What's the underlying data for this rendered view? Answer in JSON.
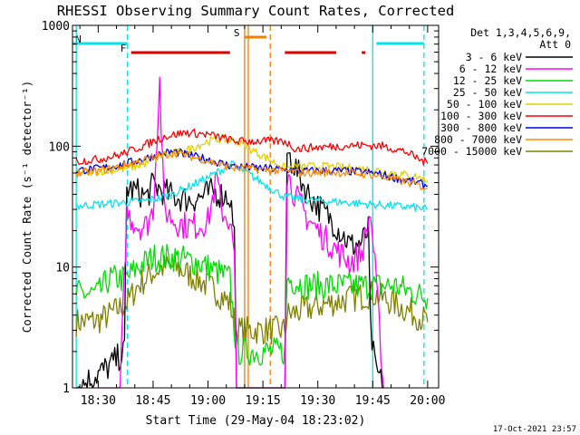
{
  "chart_data": {
    "type": "line",
    "title": "RHESSI Observing Summary Count Rates, Corrected",
    "xlabel": "Start Time (29-May-04 18:23:02)",
    "ylabel": "Corrected Count Rate (s⁻¹ detector⁻¹)",
    "yscale": "log",
    "ylim": [
      1,
      1000
    ],
    "xlim_minutes": [
      18.383,
      20.05
    ],
    "x_ticks": [
      "18:30",
      "18:45",
      "19:00",
      "19:15",
      "19:30",
      "19:45",
      "20:00"
    ],
    "y_ticks": [
      "1",
      "10",
      "100",
      "1000"
    ],
    "footer": "17-Oct-2021 23:57",
    "legend": {
      "title_lines": [
        "Det 1,3,4,5,6,9,",
        "Att 0"
      ],
      "placement": "right"
    },
    "flags": [
      {
        "label": "N",
        "color": "#00e5ee",
        "bar_ranges": [
          [
            "18:23",
            "18:38"
          ],
          [
            "19:46",
            "19:59"
          ]
        ]
      },
      {
        "label": "F",
        "color": "#e00000",
        "bar_ranges": [
          [
            "18:39",
            "19:06"
          ],
          [
            "19:21",
            "19:35"
          ],
          [
            "19:42",
            "19:43"
          ]
        ]
      },
      {
        "label": "S",
        "color": "#f08000",
        "bar_ranges": [
          [
            "19:10",
            "19:16"
          ]
        ]
      }
    ],
    "vertical_lines": [
      {
        "time": "18:24",
        "color": "#00e5ee",
        "style": "solid"
      },
      {
        "time": "18:38",
        "color": "#00e5ee",
        "style": "dashed"
      },
      {
        "time": "19:10",
        "color": "#f08000",
        "style": "solid"
      },
      {
        "time": "19:11",
        "color": "#f08000",
        "style": "solid"
      },
      {
        "time": "19:17",
        "color": "#f08000",
        "style": "dashed"
      },
      {
        "time": "19:45",
        "color": "#00e5ee",
        "style": "solid"
      },
      {
        "time": "19:59",
        "color": "#00e5ee",
        "style": "dashed"
      }
    ],
    "series": [
      {
        "name": "3 - 6 keV",
        "color": "#000000",
        "points": [
          [
            18.4,
            1
          ],
          [
            18.55,
            1.5
          ],
          [
            18.62,
            2
          ],
          [
            18.63,
            45
          ],
          [
            18.68,
            42
          ],
          [
            18.72,
            38
          ],
          [
            18.75,
            48
          ],
          [
            18.8,
            42
          ],
          [
            18.85,
            38
          ],
          [
            18.92,
            36
          ],
          [
            18.97,
            38
          ],
          [
            19.02,
            42
          ],
          [
            19.06,
            40
          ],
          [
            19.1,
            38
          ],
          [
            19.12,
            20
          ],
          [
            19.13,
            1
          ],
          [
            19.35,
            1
          ],
          [
            19.36,
            90
          ],
          [
            19.4,
            65
          ],
          [
            19.45,
            42
          ],
          [
            19.5,
            32
          ],
          [
            19.55,
            26
          ],
          [
            19.6,
            20
          ],
          [
            19.65,
            15
          ],
          [
            19.7,
            16
          ],
          [
            19.73,
            20
          ],
          [
            19.74,
            3
          ],
          [
            19.76,
            1.5
          ],
          [
            19.8,
            1
          ]
        ]
      },
      {
        "name": "6 - 12 keV",
        "color": "#ff00ff",
        "points": [
          [
            18.5,
            1
          ],
          [
            18.6,
            1
          ],
          [
            18.63,
            28
          ],
          [
            18.68,
            22
          ],
          [
            18.72,
            22
          ],
          [
            18.75,
            30
          ],
          [
            18.78,
            340
          ],
          [
            18.8,
            30
          ],
          [
            18.85,
            24
          ],
          [
            18.9,
            22
          ],
          [
            18.95,
            22
          ],
          [
            19.0,
            24
          ],
          [
            19.04,
            55
          ],
          [
            19.06,
            30
          ],
          [
            19.1,
            24
          ],
          [
            19.12,
            12
          ],
          [
            19.13,
            1
          ],
          [
            19.35,
            1
          ],
          [
            19.36,
            60
          ],
          [
            19.4,
            38
          ],
          [
            19.45,
            26
          ],
          [
            19.5,
            20
          ],
          [
            19.55,
            16
          ],
          [
            19.6,
            13
          ],
          [
            19.65,
            11
          ],
          [
            19.7,
            13
          ],
          [
            19.74,
            28
          ],
          [
            19.76,
            10
          ],
          [
            19.8,
            1
          ]
        ]
      },
      {
        "name": "12 - 25 keV",
        "color": "#00dd00",
        "points": [
          [
            18.4,
            6
          ],
          [
            18.5,
            6
          ],
          [
            18.55,
            8
          ],
          [
            18.63,
            8
          ],
          [
            18.68,
            10
          ],
          [
            18.75,
            12
          ],
          [
            18.85,
            12
          ],
          [
            18.95,
            11
          ],
          [
            19.0,
            10
          ],
          [
            19.05,
            9
          ],
          [
            19.1,
            8
          ],
          [
            19.13,
            2
          ],
          [
            19.35,
            2
          ],
          [
            19.36,
            8
          ],
          [
            19.45,
            7
          ],
          [
            19.55,
            7
          ],
          [
            19.65,
            7
          ],
          [
            19.75,
            7
          ],
          [
            19.85,
            7
          ],
          [
            19.95,
            6
          ],
          [
            20.0,
            5.5
          ]
        ]
      },
      {
        "name": "25 - 50 keV",
        "color": "#00e5ee",
        "points": [
          [
            18.4,
            32
          ],
          [
            18.5,
            33
          ],
          [
            18.6,
            34
          ],
          [
            18.7,
            35
          ],
          [
            18.8,
            38
          ],
          [
            18.9,
            45
          ],
          [
            19.0,
            55
          ],
          [
            19.05,
            62
          ],
          [
            19.1,
            70
          ],
          [
            19.12,
            70
          ],
          [
            19.35,
            38
          ],
          [
            19.45,
            36
          ],
          [
            19.55,
            35
          ],
          [
            19.65,
            34
          ],
          [
            19.75,
            33
          ],
          [
            19.85,
            32
          ],
          [
            19.95,
            31
          ],
          [
            20.0,
            30
          ]
        ]
      },
      {
        "name": "50 - 100 keV",
        "color": "#e0d000",
        "points": [
          [
            18.4,
            60
          ],
          [
            18.5,
            62
          ],
          [
            18.6,
            64
          ],
          [
            18.7,
            70
          ],
          [
            18.8,
            85
          ],
          [
            18.9,
            92
          ],
          [
            19.0,
            110
          ],
          [
            19.06,
            115
          ],
          [
            19.12,
            112
          ],
          [
            19.35,
            66
          ],
          [
            19.45,
            68
          ],
          [
            19.55,
            68
          ],
          [
            19.65,
            66
          ],
          [
            19.75,
            64
          ],
          [
            19.85,
            60
          ],
          [
            19.95,
            56
          ],
          [
            20.0,
            52
          ]
        ]
      },
      {
        "name": "100 - 300 keV",
        "color": "#ff0000",
        "points": [
          [
            18.4,
            75
          ],
          [
            18.5,
            78
          ],
          [
            18.6,
            85
          ],
          [
            18.7,
            100
          ],
          [
            18.8,
            120
          ],
          [
            18.9,
            130
          ],
          [
            19.0,
            125
          ],
          [
            19.06,
            118
          ],
          [
            19.12,
            110
          ],
          [
            19.35,
            110
          ],
          [
            19.4,
            95
          ],
          [
            19.5,
            98
          ],
          [
            19.6,
            100
          ],
          [
            19.7,
            102
          ],
          [
            19.8,
            100
          ],
          [
            19.9,
            90
          ],
          [
            19.95,
            80
          ],
          [
            20.0,
            72
          ]
        ]
      },
      {
        "name": "300 - 800 keV",
        "color": "#0000ee",
        "points": [
          [
            18.4,
            63
          ],
          [
            18.5,
            65
          ],
          [
            18.6,
            70
          ],
          [
            18.7,
            78
          ],
          [
            18.8,
            88
          ],
          [
            18.85,
            90
          ],
          [
            18.9,
            85
          ],
          [
            19.0,
            78
          ],
          [
            19.06,
            72
          ],
          [
            19.12,
            68
          ],
          [
            19.35,
            64
          ],
          [
            19.45,
            62
          ],
          [
            19.55,
            63
          ],
          [
            19.65,
            62
          ],
          [
            19.75,
            60
          ],
          [
            19.85,
            55
          ],
          [
            19.95,
            50
          ],
          [
            20.0,
            47
          ]
        ]
      },
      {
        "name": "800 - 7000 keV",
        "color": "#ff8c00",
        "points": [
          [
            18.4,
            60
          ],
          [
            18.5,
            62
          ],
          [
            18.6,
            68
          ],
          [
            18.7,
            76
          ],
          [
            18.8,
            85
          ],
          [
            18.85,
            88
          ],
          [
            18.9,
            84
          ],
          [
            19.0,
            76
          ],
          [
            19.06,
            70
          ],
          [
            19.12,
            66
          ],
          [
            19.35,
            62
          ],
          [
            19.45,
            60
          ],
          [
            19.55,
            61
          ],
          [
            19.65,
            60
          ],
          [
            19.75,
            58
          ],
          [
            19.85,
            53
          ],
          [
            19.95,
            48
          ],
          [
            20.0,
            45
          ]
        ]
      },
      {
        "name": "7000 - 15000 keV",
        "color": "#808000",
        "points": [
          [
            18.4,
            3.5
          ],
          [
            18.5,
            3.6
          ],
          [
            18.55,
            4
          ],
          [
            18.63,
            5
          ],
          [
            18.68,
            7
          ],
          [
            18.75,
            9
          ],
          [
            18.8,
            10
          ],
          [
            18.85,
            10
          ],
          [
            18.95,
            8
          ],
          [
            19.0,
            7
          ],
          [
            19.05,
            6
          ],
          [
            19.1,
            5
          ],
          [
            19.13,
            3
          ],
          [
            19.35,
            3
          ],
          [
            19.36,
            4
          ],
          [
            19.45,
            4.5
          ],
          [
            19.55,
            5
          ],
          [
            19.65,
            5.5
          ],
          [
            19.75,
            6
          ],
          [
            19.85,
            5
          ],
          [
            19.95,
            4
          ],
          [
            20.0,
            3.5
          ]
        ]
      }
    ]
  }
}
